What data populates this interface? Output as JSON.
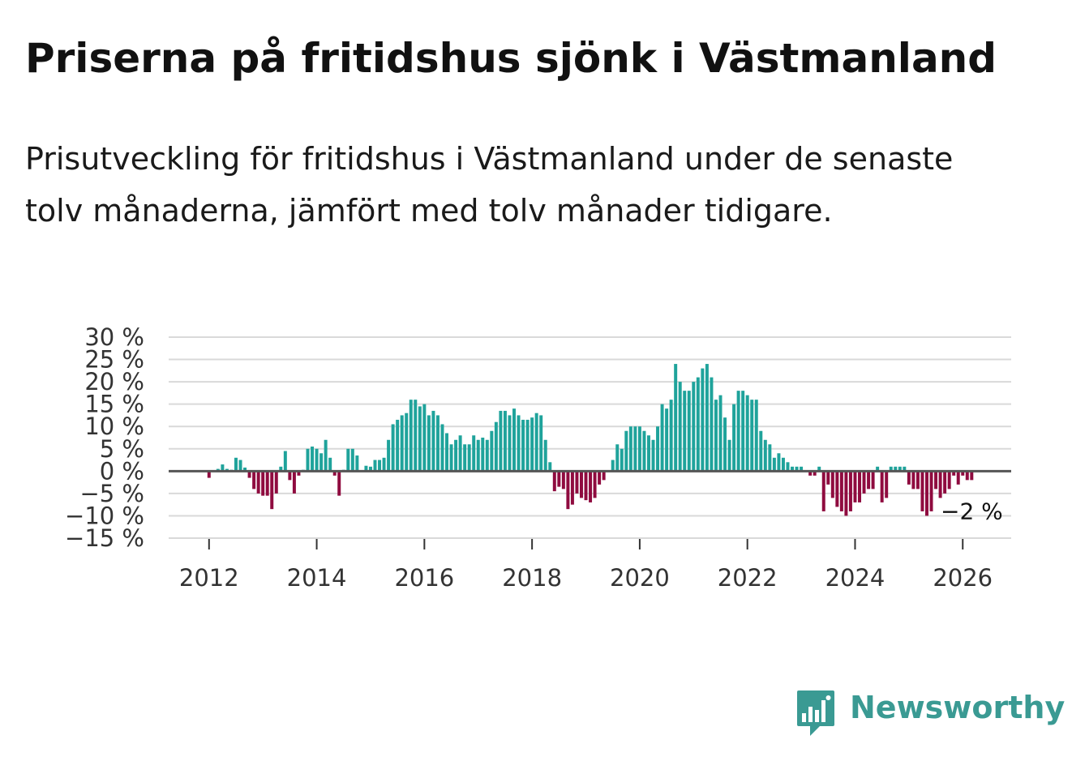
{
  "header": {
    "title": "Priserna på fritidshus sjönk i Västmanland",
    "subtitle": "Prisutveckling för fritidshus i Västmanland under de senaste tolv månaderna, jämfört med tolv månader tidigare."
  },
  "brand": {
    "name": "Newsworthy",
    "logo_icon": "newsworthy-bar-chart-icon"
  },
  "colors": {
    "positive": "#1fa39b",
    "negative": "#8f0b3f",
    "gridline": "#d9d9d9",
    "zeroline": "#555555",
    "axis_text": "#333333",
    "brand": "#3a9a93"
  },
  "chart_data": {
    "type": "bar",
    "title": "Priserna på fritidshus sjönk i Västmanland",
    "xlabel": "",
    "ylabel": "",
    "ylim": [
      -15,
      30
    ],
    "xlim": [
      2011.25,
      2026.9
    ],
    "grid": true,
    "y_ticks": [
      30,
      25,
      20,
      15,
      10,
      5,
      0,
      -5,
      -10,
      -15
    ],
    "y_tick_labels": [
      "30 %",
      "25 %",
      "20 %",
      "15 %",
      "10 %",
      "5 %",
      "0 %",
      "−5 %",
      "−10 %",
      "−15 %"
    ],
    "x_ticks": [
      2012,
      2014,
      2016,
      2018,
      2020,
      2022,
      2024,
      2026
    ],
    "x_tick_labels": [
      "2012",
      "2014",
      "2016",
      "2018",
      "2020",
      "2022",
      "2024",
      "2026"
    ],
    "start": {
      "year": 2012,
      "month": 1
    },
    "series": [
      {
        "name": "Prisutveckling",
        "values": [
          -1.5,
          0,
          0.5,
          1.5,
          0.5,
          0.3,
          3,
          2.5,
          0.8,
          -1.5,
          -4,
          -5,
          -5.5,
          -5.5,
          -8.5,
          -5,
          1,
          4.5,
          -2,
          -5,
          -1,
          0.3,
          5,
          5.5,
          5,
          4,
          7,
          3,
          -1,
          -5.5,
          0.3,
          5,
          5,
          3.5,
          0,
          1.2,
          1,
          2.5,
          2.5,
          3,
          7,
          10.5,
          11.5,
          12.5,
          13,
          16,
          16,
          14.5,
          15,
          12.5,
          13.5,
          12.5,
          10.5,
          8.5,
          6,
          7,
          8,
          6,
          6,
          8,
          7,
          7.5,
          7,
          9,
          11,
          13.5,
          13.5,
          12.5,
          14,
          12.5,
          11.5,
          11.5,
          12,
          13,
          12.5,
          7,
          2,
          -4.5,
          -3.5,
          -4,
          -8.5,
          -7.5,
          -5,
          -6,
          -6.5,
          -7,
          -6,
          -3,
          -2,
          0,
          2.5,
          6,
          5,
          9,
          10,
          10,
          10,
          9,
          8,
          7,
          10,
          15,
          14,
          16,
          24,
          20,
          18,
          18,
          20,
          21,
          23,
          24,
          21,
          16,
          17,
          12,
          7,
          15,
          18,
          18,
          17,
          16,
          16,
          9,
          7,
          6,
          3,
          4,
          3,
          2,
          1,
          1,
          1,
          0,
          -1,
          -1,
          1,
          -9,
          -3,
          -6,
          -8,
          -9,
          -10,
          -9,
          -7,
          -7,
          -5,
          -4,
          -4,
          1,
          -7,
          -6,
          1,
          1,
          1,
          1,
          -3,
          -4,
          -4,
          -9,
          -10,
          -9,
          -4,
          -6,
          -5,
          -4,
          -1,
          -3,
          -1,
          -2,
          -2
        ]
      }
    ],
    "annotation": {
      "text": "−2 %",
      "position": "right-of-last-bar"
    }
  }
}
